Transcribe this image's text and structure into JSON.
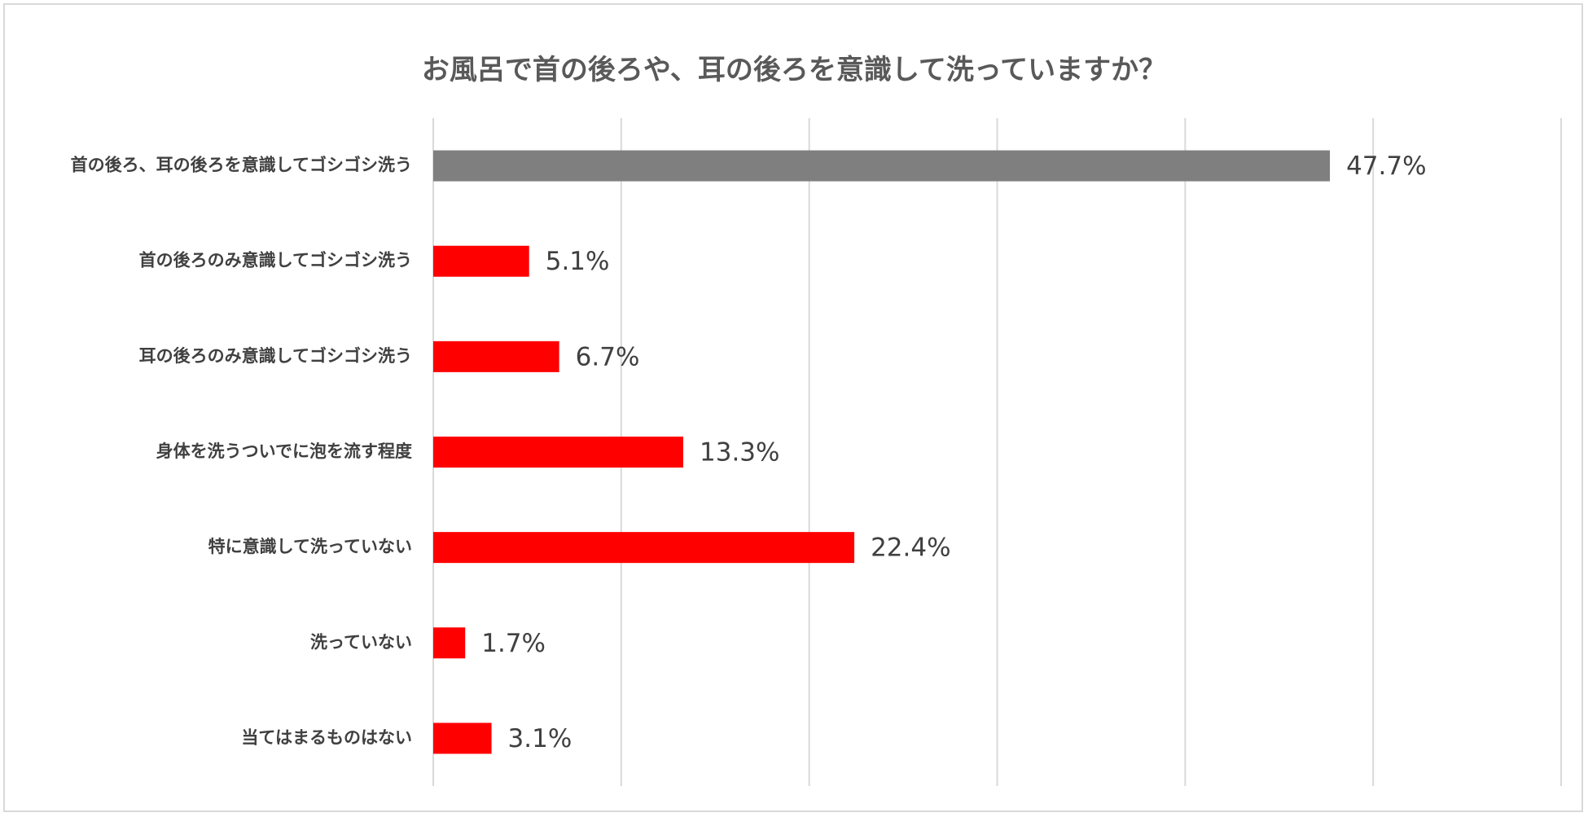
{
  "chart_data": {
    "type": "bar",
    "orientation": "horizontal",
    "title": "お風呂で首の後ろや、耳の後ろを意識して洗っていますか？",
    "categories": [
      "首の後ろ、耳の後ろを意識してゴシゴシ洗う",
      "首の後ろのみ意識してゴシゴシ洗う",
      "耳の後ろのみ意識してゴシゴシ洗う",
      "身体を洗うついでに泡を流す程度",
      "特に意識して洗っていない",
      "洗っていない",
      "当てはまるものはない"
    ],
    "values": [
      47.7,
      5.1,
      6.7,
      13.3,
      22.4,
      1.7,
      3.1
    ],
    "value_labels": [
      "47.7%",
      "5.1%",
      "6.7%",
      "13.3%",
      "22.4%",
      "1.7%",
      "3.1%"
    ],
    "bar_colors": [
      "#7f7f7f",
      "#ff0000",
      "#ff0000",
      "#ff0000",
      "#ff0000",
      "#ff0000",
      "#ff0000"
    ],
    "xlim": [
      0,
      60
    ],
    "x_gridlines": [
      0,
      10,
      20,
      30,
      40,
      50,
      60
    ],
    "grid": true,
    "legend": "none"
  }
}
